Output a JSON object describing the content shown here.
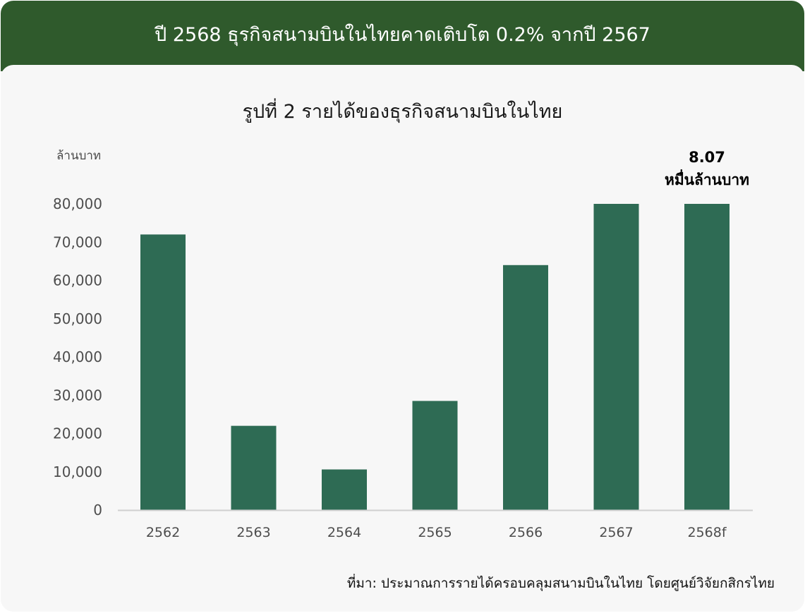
{
  "header": {
    "title": "ปี 2568 ธุรกิจสนามบินในไทยคาดเติบโต 0.2% จากปี 2567"
  },
  "footer": {
    "source": "ที่มา: ประมาณการรายได้ครอบคลุมสนามบินในไทย โดยศูนย์วิจัยกสิกรไทย"
  },
  "colors": {
    "header_bg": "#2f5a2c",
    "bar": "#2e6b54",
    "panel_bg": "#f7f7f7"
  },
  "chart_data": {
    "type": "bar",
    "title": "รูปที่ 2 รายได้ของธุรกิจสนามบินในไทย",
    "ylabel": "ล้านบาท",
    "xlabel": "",
    "categories": [
      "2562",
      "2563",
      "2564",
      "2565",
      "2566",
      "2567",
      "2568f"
    ],
    "values": [
      72000,
      22000,
      10600,
      28500,
      64000,
      80500,
      80700
    ],
    "ylim": [
      0,
      80000
    ],
    "yticks": [
      "0",
      "10,000",
      "20,000",
      "30,000",
      "40,000",
      "50,000",
      "60,000",
      "70,000",
      "80,000"
    ],
    "grid": false,
    "annotation": {
      "category": "2568f",
      "lines": [
        "8.07",
        "หมื่นล้านบาท"
      ]
    }
  }
}
